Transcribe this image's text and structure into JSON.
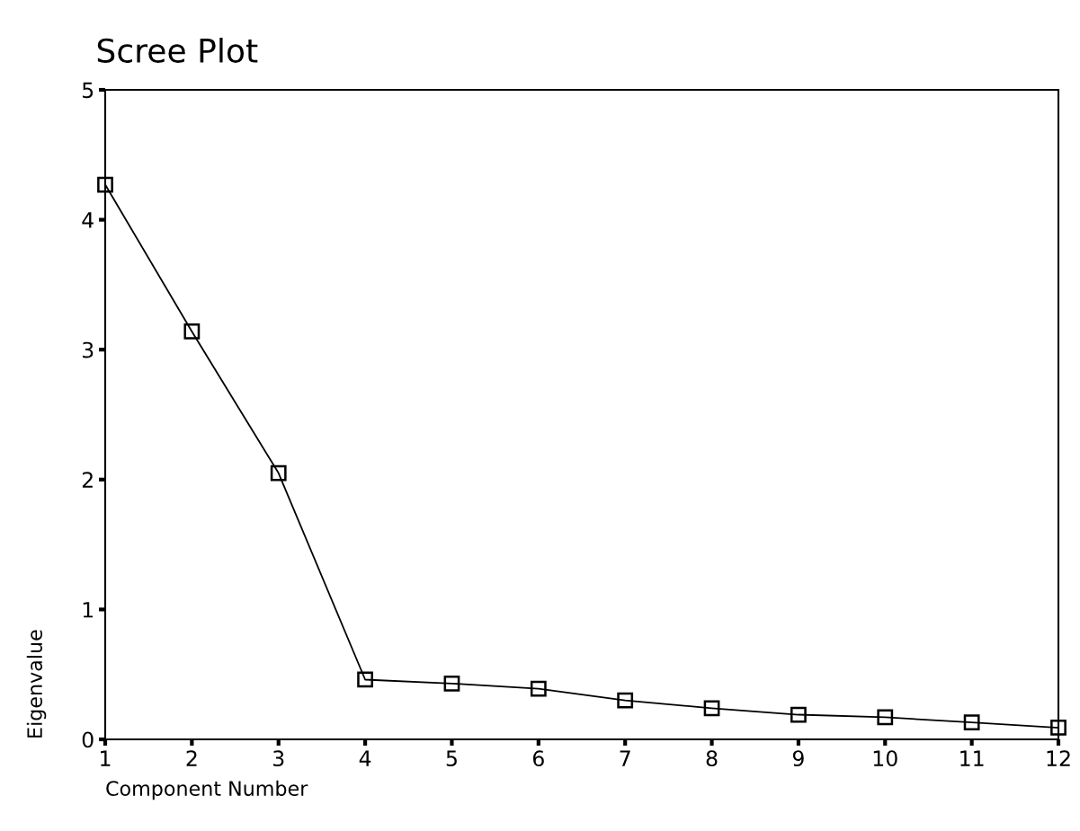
{
  "chart_data": {
    "type": "line",
    "title": "Scree Plot",
    "xlabel": "Component Number",
    "ylabel": "Eigenvalue",
    "x": [
      1,
      2,
      3,
      4,
      5,
      6,
      7,
      8,
      9,
      10,
      11,
      12
    ],
    "series": [
      {
        "color": "#000000",
        "values": [
          4.27,
          3.14,
          2.05,
          0.46,
          0.43,
          0.39,
          0.3,
          0.24,
          0.19,
          0.17,
          0.13,
          0.09
        ]
      }
    ],
    "xlim": [
      1,
      12
    ],
    "xticks": [
      1,
      2,
      3,
      4,
      5,
      6,
      7,
      8,
      9,
      10,
      11,
      12
    ],
    "ylim": [
      0,
      5
    ],
    "yticks": [
      0,
      1,
      2,
      3,
      4,
      5
    ],
    "marker": "square",
    "line_style": "solid",
    "grid": false,
    "legend": false
  }
}
